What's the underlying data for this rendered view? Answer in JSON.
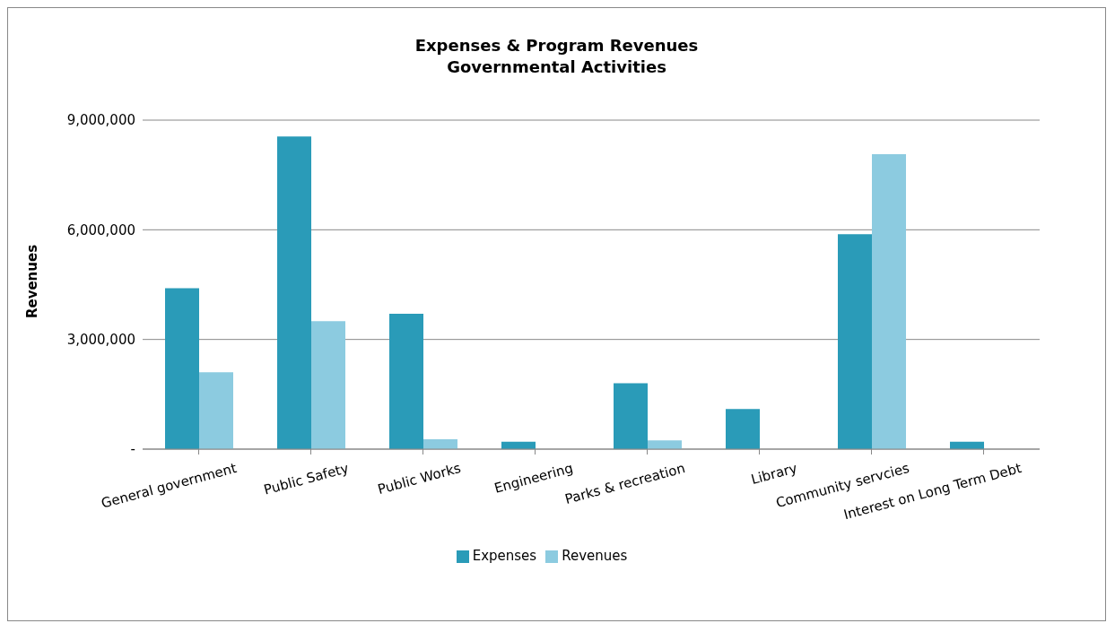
{
  "chart_data": {
    "type": "bar",
    "title": "Expenses & Program Revenues\nGovernmental Activities",
    "ylabel": "Revenues",
    "categories": [
      "General government",
      "Public Safety",
      "Public Works",
      "Engineering",
      "Parks & recreation",
      "Library",
      "Community servcies",
      "Interest on Long Term Debt"
    ],
    "series": [
      {
        "name": "Expenses",
        "color": "#2a9bb8",
        "values": [
          4400000,
          8550000,
          3700000,
          200000,
          1800000,
          1100000,
          5880000,
          200000
        ]
      },
      {
        "name": "Revenues",
        "color": "#8ccbe0",
        "values": [
          2100000,
          3500000,
          270000,
          0,
          240000,
          null,
          8070000,
          0
        ]
      }
    ],
    "ylim": [
      0,
      9000000
    ],
    "yticks": [
      {
        "value": 0,
        "label": "-"
      },
      {
        "value": 3000000,
        "label": "3,000,000"
      },
      {
        "value": 6000000,
        "label": "6,000,000"
      },
      {
        "value": 9000000,
        "label": "9,000,000"
      }
    ],
    "grid": "y",
    "legend": "bottom"
  }
}
